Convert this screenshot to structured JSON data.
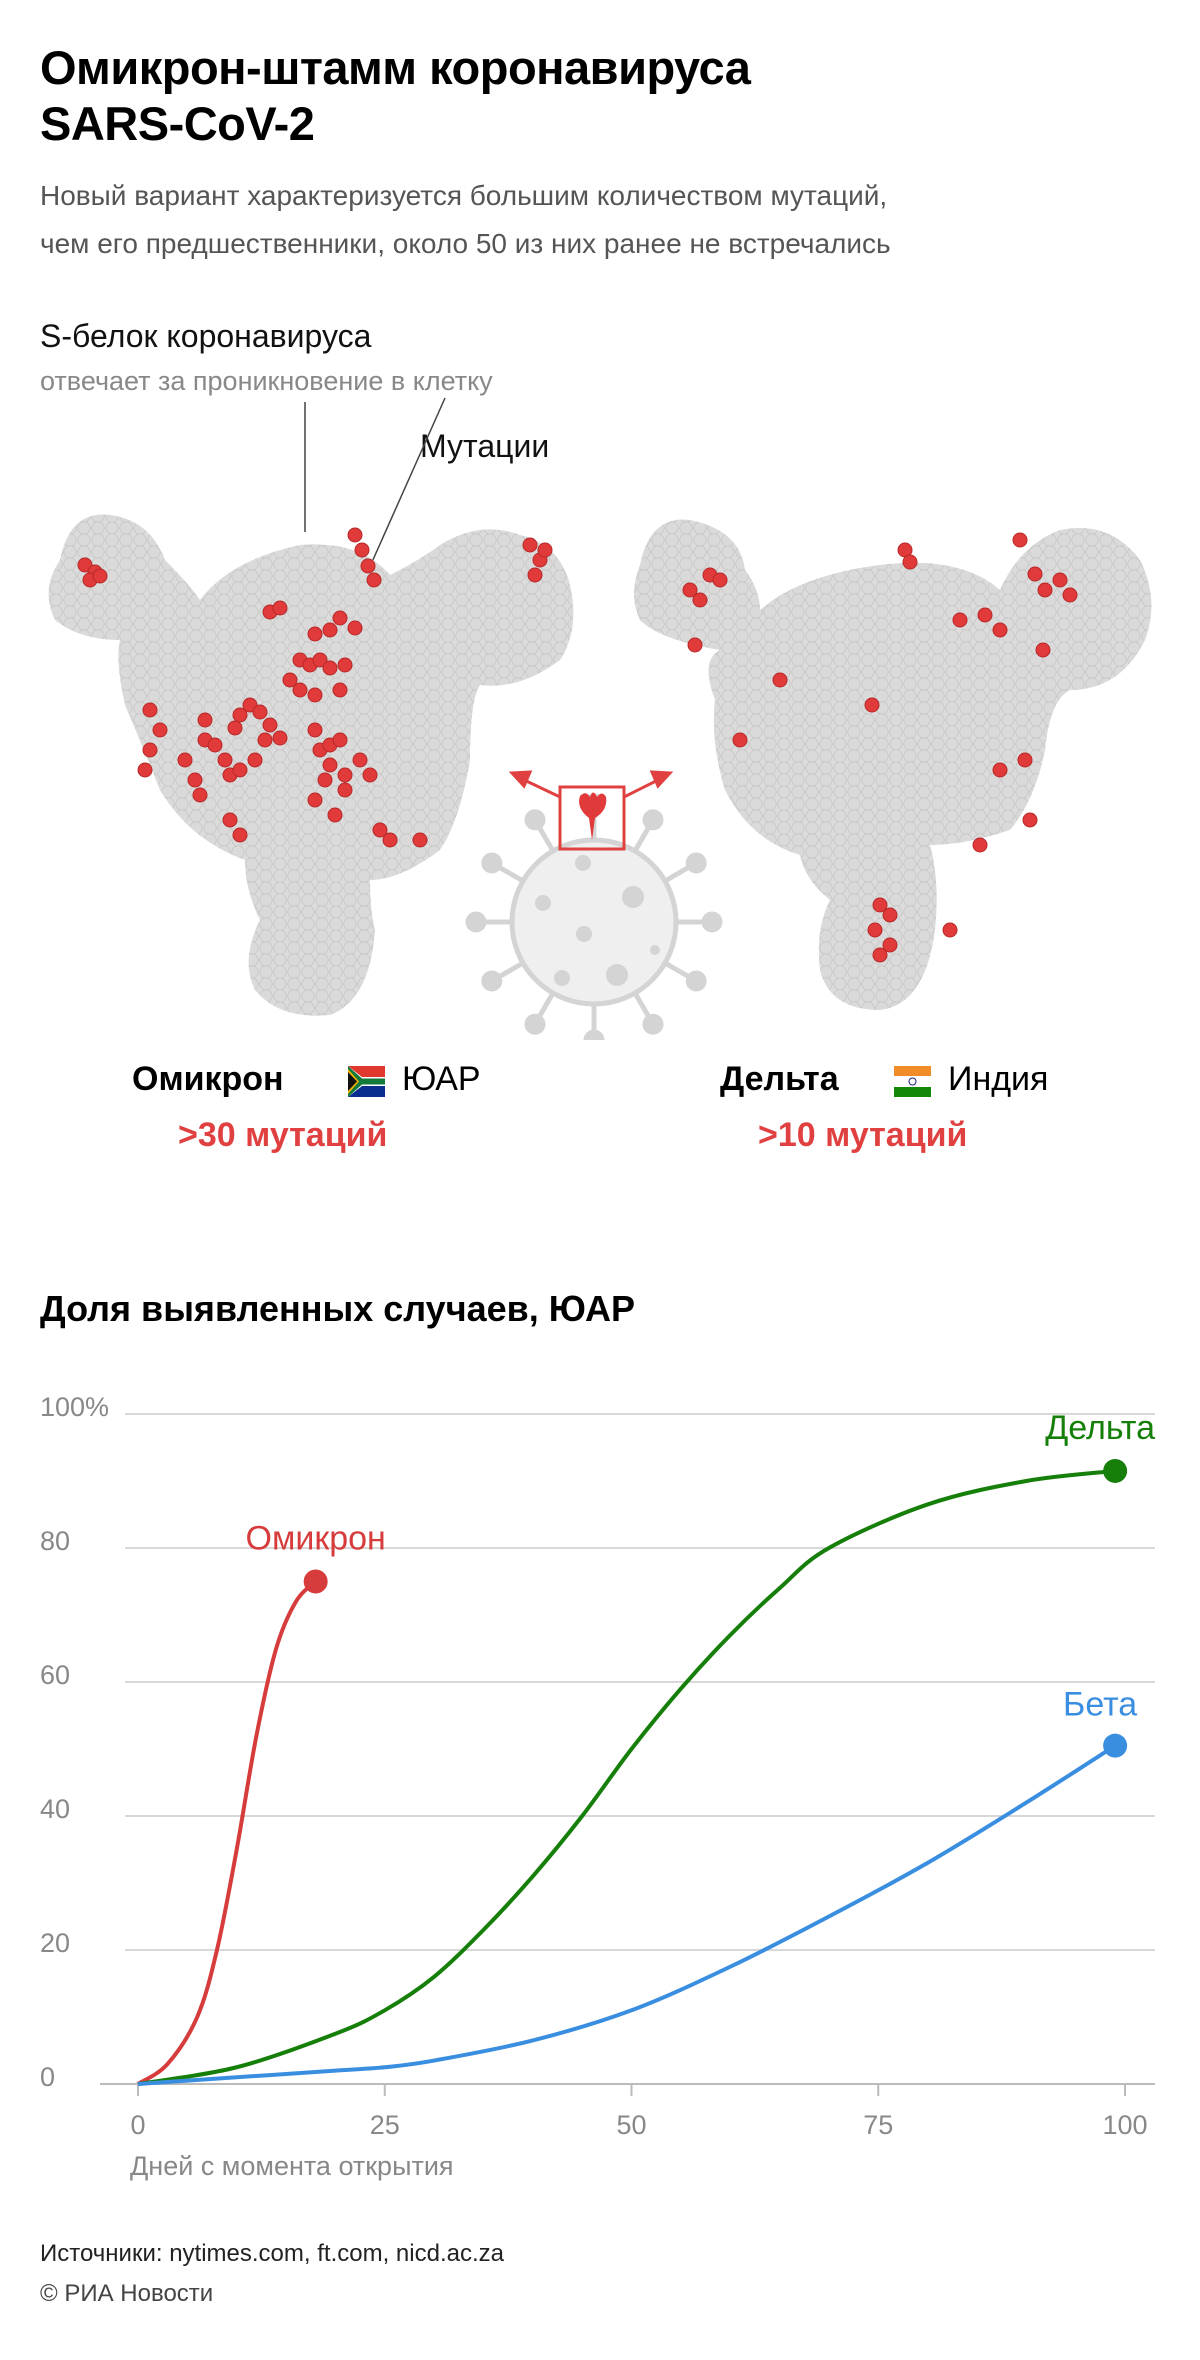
{
  "header": {
    "title_line1": "Омикрон-штамм коронавируса",
    "title_line2": "SARS-CoV-2",
    "subtitle_line1": "Новый вариант характеризуется большим количеством мутаций,",
    "subtitle_line2": "чем его предшественники, около 50 из них ранее не встречались"
  },
  "illustration": {
    "protein_label": "S-белок коронавируса",
    "protein_sublabel": "отвечает за проникновение в клетку",
    "mutations_label": "Мутации",
    "mutation_color": "#e03a3a",
    "protein_color": "#d6d6d6"
  },
  "variants": [
    {
      "name": "Омикрон",
      "country": "ЮАР",
      "flag": "south-africa-flag",
      "mutations": ">30 мутаций"
    },
    {
      "name": "Дельта",
      "country": "Индия",
      "flag": "india-flag",
      "mutations": ">10 мутаций"
    }
  ],
  "chart_data": {
    "type": "line",
    "title": "Доля выявленных случаев, ЮАР",
    "xlabel": "Дней с момента открытия",
    "ylabel": "",
    "xlim": [
      0,
      100
    ],
    "ylim": [
      0,
      100
    ],
    "xticks": [
      "0",
      "25",
      "50",
      "75",
      "100"
    ],
    "yticks": [
      "0",
      "20",
      "40",
      "60",
      "80",
      "100%"
    ],
    "grid": true,
    "series": [
      {
        "name": "Омикрон",
        "color": "#d63c3c",
        "x": [
          0,
          3,
          6,
          8,
          10,
          12,
          14,
          16,
          18
        ],
        "y": [
          0,
          3,
          10,
          20,
          35,
          52,
          65,
          72,
          75
        ]
      },
      {
        "name": "Дельта",
        "color": "#157f0a",
        "x": [
          0,
          10,
          20,
          25,
          30,
          35,
          40,
          45,
          50,
          55,
          60,
          65,
          70,
          80,
          90,
          99
        ],
        "y": [
          0,
          2.5,
          7.5,
          11,
          16,
          23,
          31,
          40,
          50,
          59,
          67,
          74,
          80,
          86.5,
          90,
          91.5
        ]
      },
      {
        "name": "Бета",
        "color": "#3a8ee0",
        "x": [
          0,
          10,
          20,
          25,
          30,
          40,
          50,
          60,
          70,
          80,
          90,
          99
        ],
        "y": [
          0,
          1,
          2,
          2.5,
          3.5,
          6.5,
          11,
          17.5,
          25,
          33,
          42,
          50.5
        ]
      }
    ]
  },
  "footer": {
    "sources": "Источники: nytimes.com, ft.com, nicd.ac.za",
    "copyright": "© РИА Новости"
  }
}
